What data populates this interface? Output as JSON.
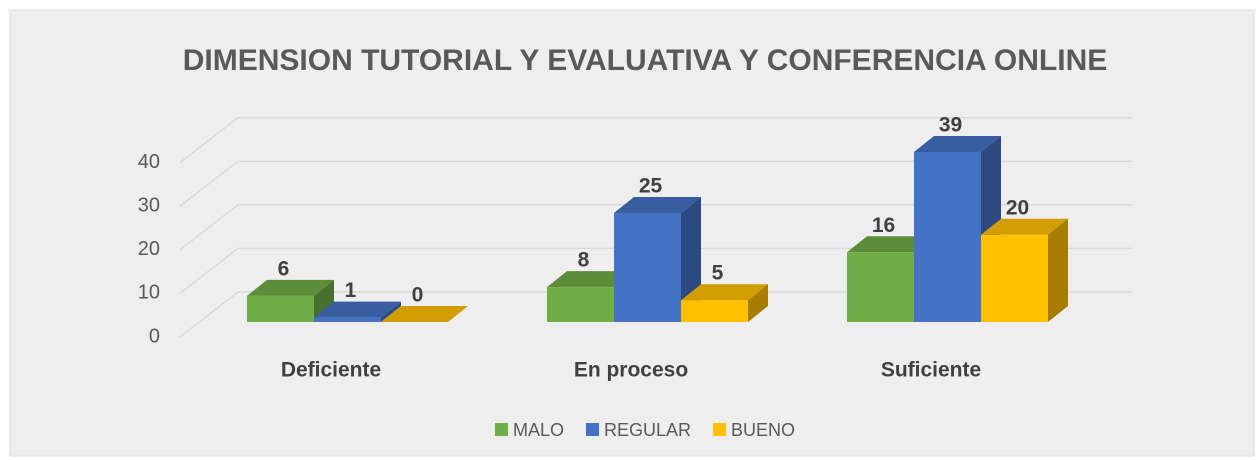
{
  "chart_data": {
    "type": "bar3d",
    "title": "DIMENSION TUTORIAL Y EVALUATIVA  Y CONFERENCIA ONLINE",
    "categories": [
      "Deficiente",
      "En proceso",
      "Suficiente"
    ],
    "series": [
      {
        "name": "MALO",
        "color": "#70ad47",
        "values": [
          6,
          8,
          16
        ]
      },
      {
        "name": "REGULAR",
        "color": "#4472c4",
        "values": [
          1,
          25,
          39
        ]
      },
      {
        "name": "BUENO",
        "color": "#ffc000",
        "values": [
          0,
          5,
          20
        ]
      }
    ],
    "ylim": [
      0,
      40
    ],
    "yticks": [
      0,
      10,
      20,
      30,
      40
    ],
    "grid": true,
    "legend": "bottom"
  }
}
